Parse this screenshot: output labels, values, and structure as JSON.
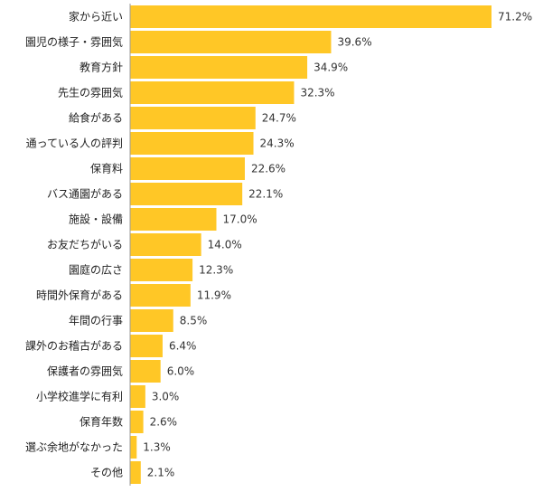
{
  "chart_data": {
    "type": "bar",
    "orientation": "horizontal",
    "categories": [
      "家から近い",
      "園児の様子・雰囲気",
      "教育方針",
      "先生の雰囲気",
      "給食がある",
      "通っている人の評判",
      "保育料",
      "バス通園がある",
      "施設・設備",
      "お友だちがいる",
      "園庭の広さ",
      "時間外保育がある",
      "年間の行事",
      "課外のお稽古がある",
      "保護者の雰囲気",
      "小学校進学に有利",
      "保育年数",
      "選ぶ余地がなかった",
      "その他"
    ],
    "values": [
      71.2,
      39.6,
      34.9,
      32.3,
      24.7,
      24.3,
      22.6,
      22.1,
      17.0,
      14.0,
      12.3,
      11.9,
      8.5,
      6.4,
      6.0,
      3.0,
      2.6,
      1.3,
      2.1
    ],
    "value_labels": [
      "71.2%",
      "39.6%",
      "34.9%",
      "32.3%",
      "24.7%",
      "24.3%",
      "22.6%",
      "22.1%",
      "17.0%",
      "14.0%",
      "12.3%",
      "11.9%",
      "8.5%",
      "6.4%",
      "6.0%",
      "3.0%",
      "2.6%",
      "1.3%",
      "2.1%"
    ],
    "xlim": [
      0,
      71.2
    ],
    "grid": false,
    "legend": "none",
    "bar_color": "#FFC726",
    "axis_color": "#999999"
  }
}
